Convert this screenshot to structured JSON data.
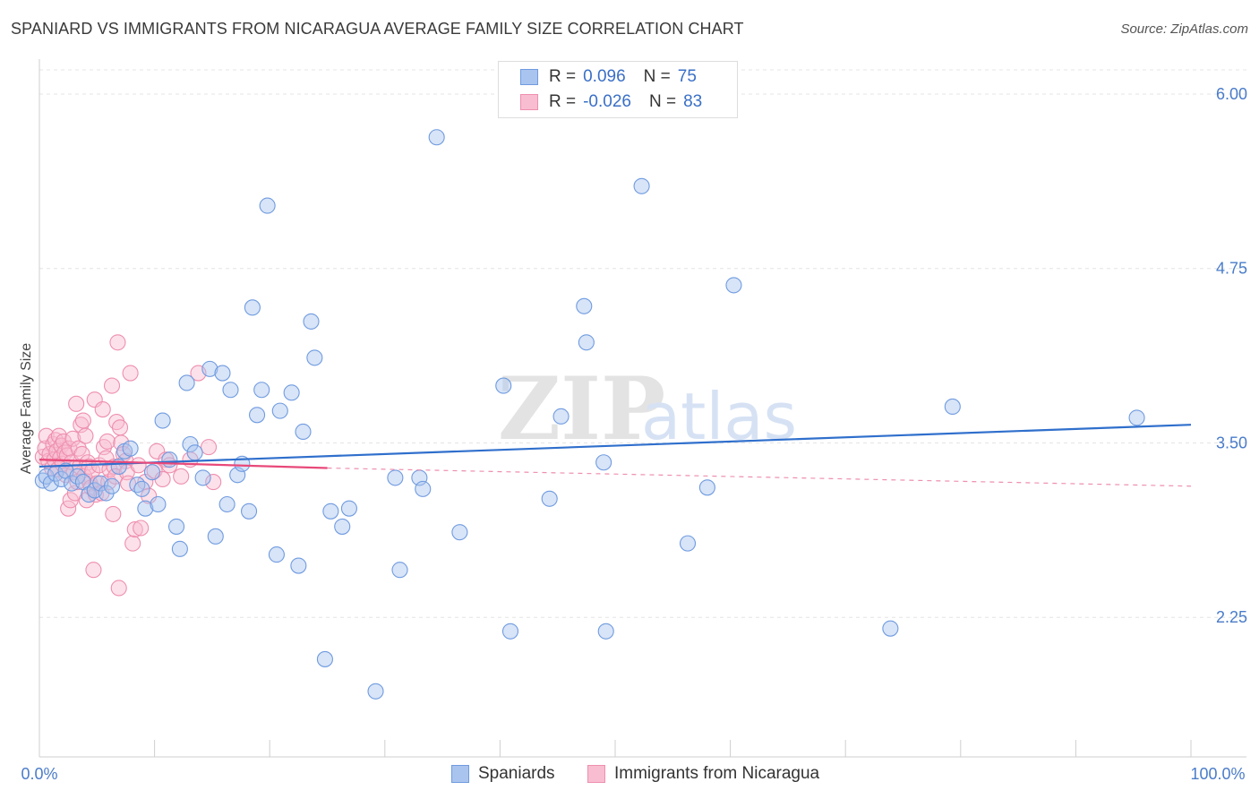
{
  "title": "SPANIARD VS IMMIGRANTS FROM NICARAGUA AVERAGE FAMILY SIZE CORRELATION CHART",
  "source": "Source: ZipAtlas.com",
  "watermark": {
    "zip": "ZIP",
    "atlas": "atlas"
  },
  "legend": {
    "rows": [
      {
        "r_label": "R =",
        "r_value": "0.096",
        "n_label": "N =",
        "n_value": "75",
        "color": "#a9c4ee",
        "border": "#6f9be0"
      },
      {
        "r_label": "R =",
        "r_value": "-0.026",
        "n_label": "N =",
        "n_value": "83",
        "color": "#f8bdd0",
        "border": "#ee8fae"
      }
    ]
  },
  "bottom_legend": [
    {
      "label": "Spaniards",
      "color": "#a9c4ee",
      "border": "#6f9be0"
    },
    {
      "label": "Immigrants from Nicaragua",
      "color": "#f8bdd0",
      "border": "#ee8fae"
    }
  ],
  "chart_data": {
    "type": "scatter",
    "title": "SPANIARD VS IMMIGRANTS FROM NICARAGUA AVERAGE FAMILY SIZE CORRELATION CHART",
    "xlabel": "",
    "ylabel": "Average Family Size",
    "xlim": [
      0,
      100
    ],
    "ylim": [
      1.25,
      6.25
    ],
    "x_tick_labels": [
      "0.0%",
      "100.0%"
    ],
    "y_ticks": [
      2.25,
      3.5,
      4.75,
      6.0
    ],
    "y_tick_labels": [
      "2.25",
      "3.50",
      "4.75",
      "6.00"
    ],
    "grid": true,
    "series": [
      {
        "name": "Spaniards",
        "color": "#6f9be0",
        "fill": "rgba(169,196,238,0.45)",
        "trend": {
          "x": [
            0,
            100
          ],
          "y": [
            3.33,
            3.63
          ]
        },
        "points": [
          [
            0.3,
            3.23
          ],
          [
            0.6,
            3.26
          ],
          [
            1.0,
            3.21
          ],
          [
            1.4,
            3.28
          ],
          [
            1.9,
            3.24
          ],
          [
            2.3,
            3.3
          ],
          [
            2.8,
            3.21
          ],
          [
            3.3,
            3.26
          ],
          [
            3.8,
            3.22
          ],
          [
            4.3,
            3.13
          ],
          [
            4.8,
            3.16
          ],
          [
            5.3,
            3.21
          ],
          [
            5.8,
            3.14
          ],
          [
            6.3,
            3.19
          ],
          [
            6.9,
            3.33
          ],
          [
            7.4,
            3.44
          ],
          [
            7.9,
            3.46
          ],
          [
            8.5,
            3.2
          ],
          [
            8.9,
            3.17
          ],
          [
            9.2,
            3.03
          ],
          [
            9.8,
            3.29
          ],
          [
            10.3,
            3.06
          ],
          [
            10.7,
            3.66
          ],
          [
            11.3,
            3.38
          ],
          [
            11.9,
            2.9
          ],
          [
            12.2,
            2.74
          ],
          [
            12.8,
            3.93
          ],
          [
            13.1,
            3.49
          ],
          [
            13.5,
            3.43
          ],
          [
            14.2,
            3.25
          ],
          [
            14.8,
            4.03
          ],
          [
            15.3,
            2.83
          ],
          [
            15.9,
            4.0
          ],
          [
            16.3,
            3.06
          ],
          [
            16.6,
            3.88
          ],
          [
            17.2,
            3.27
          ],
          [
            17.6,
            3.35
          ],
          [
            18.2,
            3.01
          ],
          [
            18.5,
            4.47
          ],
          [
            18.9,
            3.7
          ],
          [
            19.3,
            3.88
          ],
          [
            19.8,
            5.2
          ],
          [
            20.6,
            2.7
          ],
          [
            20.9,
            3.73
          ],
          [
            21.9,
            3.86
          ],
          [
            22.5,
            2.62
          ],
          [
            22.9,
            3.58
          ],
          [
            23.6,
            4.37
          ],
          [
            23.9,
            4.11
          ],
          [
            24.8,
            1.95
          ],
          [
            25.3,
            3.01
          ],
          [
            26.3,
            2.9
          ],
          [
            26.9,
            3.03
          ],
          [
            29.2,
            1.72
          ],
          [
            30.9,
            3.25
          ],
          [
            31.3,
            2.59
          ],
          [
            33.0,
            3.25
          ],
          [
            33.3,
            3.17
          ],
          [
            34.5,
            5.69
          ],
          [
            36.5,
            2.86
          ],
          [
            40.3,
            3.91
          ],
          [
            40.9,
            2.15
          ],
          [
            44.3,
            3.1
          ],
          [
            45.3,
            3.69
          ],
          [
            47.3,
            4.48
          ],
          [
            47.5,
            4.22
          ],
          [
            49.0,
            3.36
          ],
          [
            49.2,
            2.15
          ],
          [
            52.3,
            5.34
          ],
          [
            56.3,
            2.78
          ],
          [
            58.0,
            3.18
          ],
          [
            60.3,
            4.63
          ],
          [
            73.9,
            2.17
          ],
          [
            79.3,
            3.76
          ],
          [
            95.3,
            3.68
          ]
        ]
      },
      {
        "name": "Immigrants from Nicaragua",
        "color": "#ee8fae",
        "fill": "rgba(248,189,208,0.45)",
        "trend": {
          "x": [
            0,
            25
          ],
          "y": [
            3.38,
            3.32
          ]
        },
        "trend_dashed": {
          "x": [
            25,
            100
          ],
          "y": [
            3.32,
            3.19
          ]
        },
        "points": [
          [
            0.3,
            3.4
          ],
          [
            0.5,
            3.46
          ],
          [
            0.6,
            3.55
          ],
          [
            0.8,
            3.37
          ],
          [
            0.9,
            3.42
          ],
          [
            1.1,
            3.32
          ],
          [
            1.2,
            3.49
          ],
          [
            1.3,
            3.38
          ],
          [
            1.4,
            3.52
          ],
          [
            1.5,
            3.44
          ],
          [
            1.6,
            3.31
          ],
          [
            1.7,
            3.55
          ],
          [
            1.8,
            3.39
          ],
          [
            1.9,
            3.48
          ],
          [
            2.0,
            3.35
          ],
          [
            2.1,
            3.51
          ],
          [
            2.2,
            3.43
          ],
          [
            2.3,
            3.27
          ],
          [
            2.4,
            3.41
          ],
          [
            2.5,
            3.03
          ],
          [
            2.6,
            3.46
          ],
          [
            2.7,
            3.09
          ],
          [
            2.8,
            3.36
          ],
          [
            2.9,
            3.53
          ],
          [
            3.0,
            3.29
          ],
          [
            3.1,
            3.14
          ],
          [
            3.2,
            3.78
          ],
          [
            3.3,
            3.22
          ],
          [
            3.4,
            3.46
          ],
          [
            3.5,
            3.33
          ],
          [
            3.6,
            3.63
          ],
          [
            3.7,
            3.42
          ],
          [
            3.8,
            3.66
          ],
          [
            3.9,
            3.26
          ],
          [
            4.0,
            3.55
          ],
          [
            4.1,
            3.09
          ],
          [
            4.2,
            3.36
          ],
          [
            4.3,
            3.33
          ],
          [
            4.4,
            3.21
          ],
          [
            4.5,
            3.18
          ],
          [
            4.6,
            3.3
          ],
          [
            4.7,
            2.59
          ],
          [
            4.8,
            3.81
          ],
          [
            4.9,
            3.13
          ],
          [
            5.0,
            3.21
          ],
          [
            5.2,
            3.34
          ],
          [
            5.4,
            3.14
          ],
          [
            5.5,
            3.74
          ],
          [
            5.6,
            3.47
          ],
          [
            5.8,
            3.39
          ],
          [
            5.9,
            3.51
          ],
          [
            6.0,
            3.22
          ],
          [
            6.1,
            3.31
          ],
          [
            6.3,
            3.91
          ],
          [
            6.4,
            2.99
          ],
          [
            6.5,
            3.33
          ],
          [
            6.6,
            3.26
          ],
          [
            6.7,
            3.65
          ],
          [
            6.8,
            4.22
          ],
          [
            6.9,
            2.46
          ],
          [
            7.0,
            3.61
          ],
          [
            7.1,
            3.5
          ],
          [
            7.3,
            3.42
          ],
          [
            7.5,
            3.37
          ],
          [
            7.6,
            3.29
          ],
          [
            7.7,
            3.21
          ],
          [
            7.9,
            4.0
          ],
          [
            8.1,
            2.78
          ],
          [
            8.3,
            2.88
          ],
          [
            8.6,
            3.34
          ],
          [
            8.8,
            2.89
          ],
          [
            9.2,
            3.22
          ],
          [
            9.5,
            3.12
          ],
          [
            10.0,
            3.3
          ],
          [
            10.2,
            3.44
          ],
          [
            10.7,
            3.24
          ],
          [
            11.0,
            3.38
          ],
          [
            11.3,
            3.34
          ],
          [
            12.3,
            3.26
          ],
          [
            13.1,
            3.38
          ],
          [
            13.8,
            4.0
          ],
          [
            14.7,
            3.47
          ],
          [
            15.1,
            3.22
          ]
        ]
      }
    ]
  }
}
